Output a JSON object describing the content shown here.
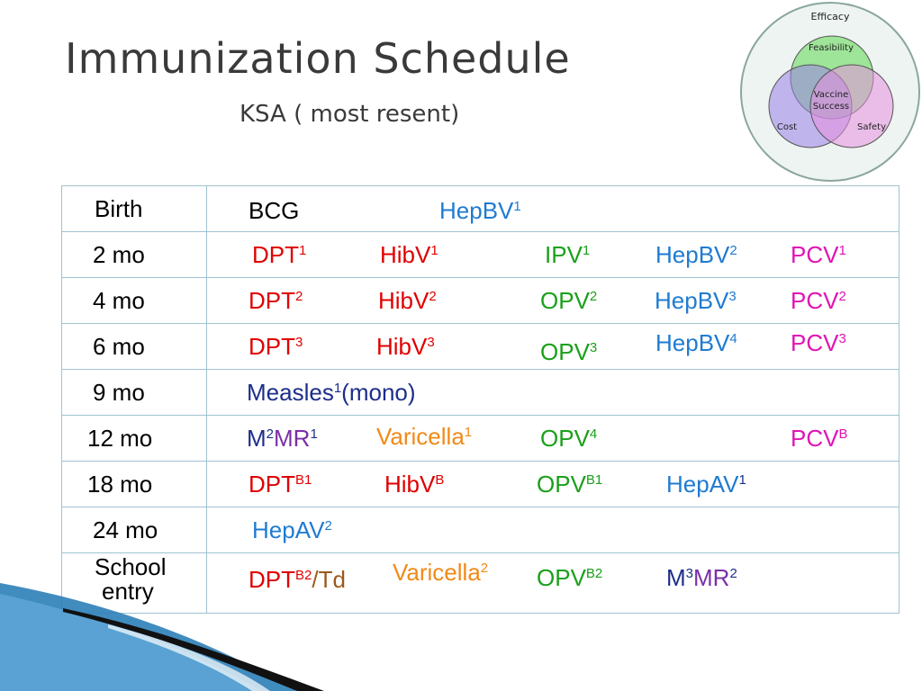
{
  "title": "Immunization Schedule",
  "subtitle": "KSA ( most resent)",
  "venn": {
    "outer": "Efficacy",
    "top": "Feasibility",
    "left": "Cost",
    "right": "Safety",
    "center_line1": "Vaccine",
    "center_line2": "Success"
  },
  "rows": [
    {
      "age": "Birth"
    },
    {
      "age": "2 mo"
    },
    {
      "age": "4 mo"
    },
    {
      "age": "6 mo"
    },
    {
      "age": "9 mo"
    },
    {
      "age": "12 mo"
    },
    {
      "age": "18 mo"
    },
    {
      "age": "24 mo"
    },
    {
      "age_line1": "School",
      "age_line2": "entry"
    }
  ],
  "v": {
    "bcg": "BCG",
    "hepbv": "HepBV",
    "dpt": "DPT",
    "hibv": "HibV",
    "ipv": "IPV",
    "opv": "OPV",
    "pcv": "PCV",
    "measles": "Measles",
    "mono": "(mono)",
    "m": "M",
    "mr": "MR",
    "varicella": "Varicella",
    "hepav": "HepAV",
    "td": "/Td"
  },
  "sup": {
    "s1": "1",
    "s2": "2",
    "s3": "3",
    "s4": "4",
    "b": "B",
    "b1": "B1",
    "b2": "B2"
  },
  "colors": {
    "red": "#e00000",
    "blue": "#1f7bd1",
    "green": "#1aa01a",
    "magenta": "#e014b4",
    "orange": "#f08a18",
    "navy": "#1c2e8a",
    "purple": "#7a2fa8",
    "brown": "#9a5a18",
    "table_border": "#9fc3d0"
  }
}
